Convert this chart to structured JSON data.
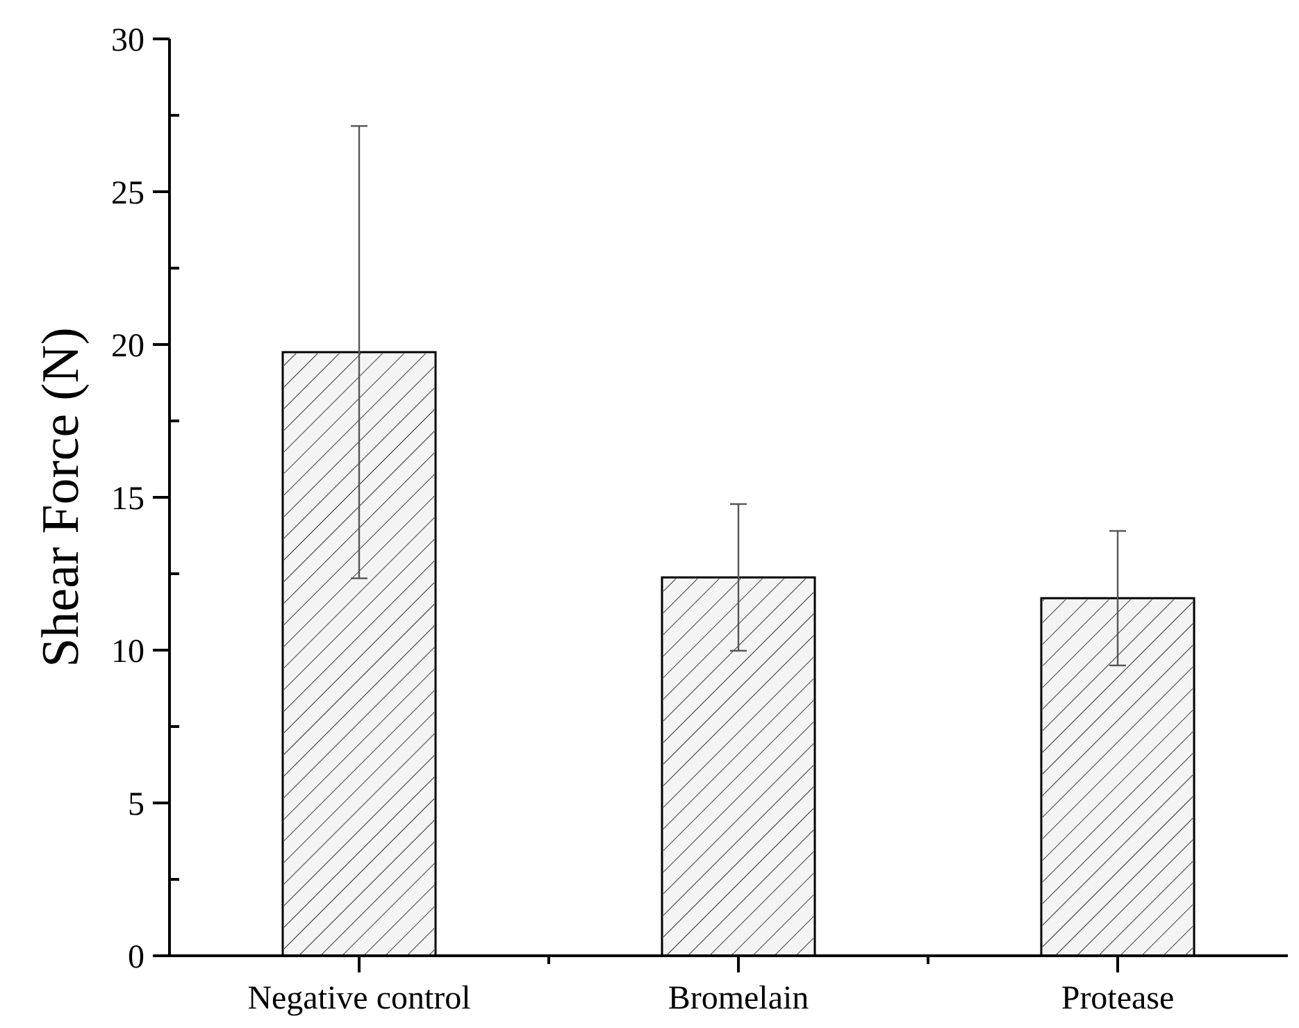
{
  "chart_data": {
    "type": "bar",
    "ylabel": "Shear Force (N)",
    "categories": [
      "Negative control",
      "Bromelain",
      "Protease"
    ],
    "values": [
      19.75,
      12.38,
      11.7
    ],
    "errors": [
      7.4,
      2.4,
      2.2
    ],
    "color": "#f4f4f4",
    "ylim": [
      0,
      30
    ],
    "yticks": [
      0,
      {
        "value": 2.5,
        "label": null
      },
      5,
      {
        "value": 7.5,
        "label": null
      },
      10,
      {
        "value": 12.5,
        "label": null
      },
      15,
      {
        "value": 17.5,
        "label": null
      },
      20,
      {
        "value": 22.5,
        "label": null
      },
      25,
      {
        "value": 27.5,
        "label": null
      },
      30
    ],
    "grid": false
  }
}
